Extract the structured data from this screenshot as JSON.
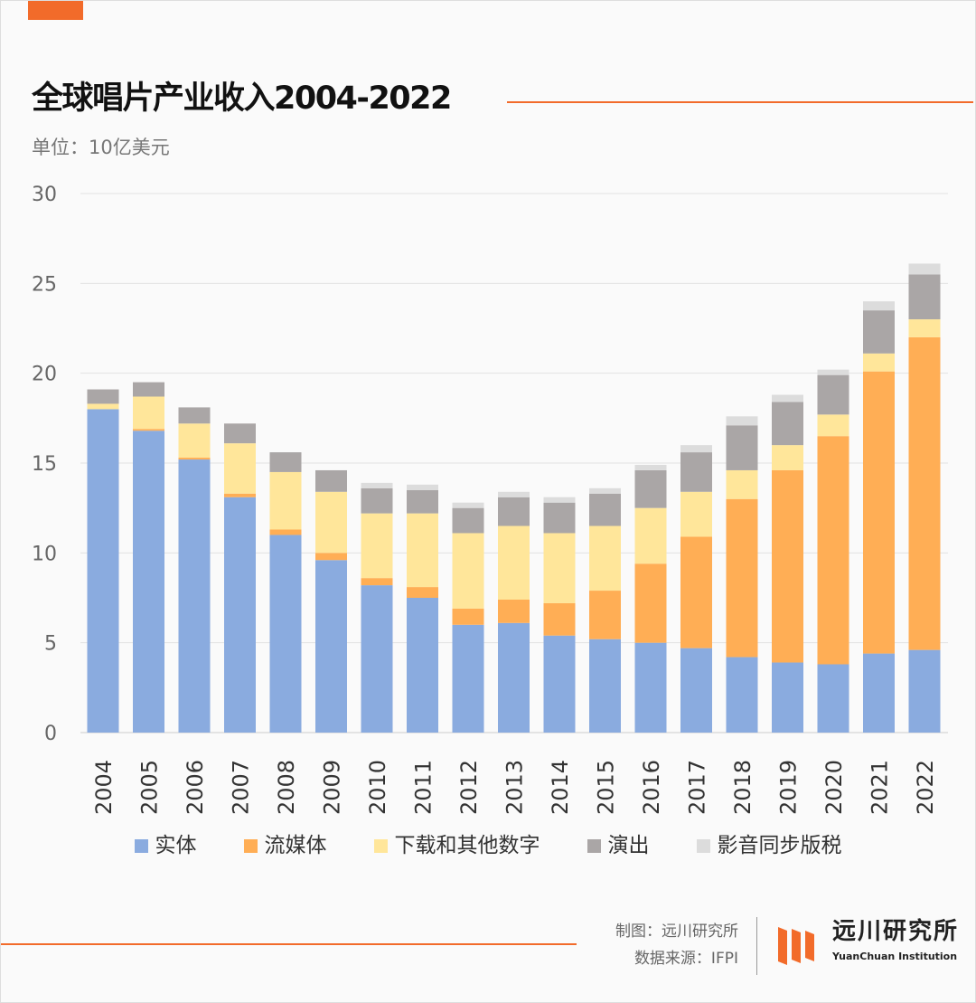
{
  "header": {
    "title": "全球唱片产业收入2004-2022",
    "subtitle": "单位：10亿美元"
  },
  "footer": {
    "made_by": "制图：远川研究所",
    "source": "数据来源：IFPI",
    "logo_text": "远川研究所",
    "logo_sub": "YuanChuan Institution"
  },
  "chart_data": {
    "type": "bar",
    "stacked": true,
    "title": "全球唱片产业收入2004-2022",
    "ylabel": "单位：10亿美元",
    "ylim": [
      0,
      30
    ],
    "yticks": [
      0,
      5,
      10,
      15,
      20,
      25,
      30
    ],
    "grid": true,
    "legend_position": "bottom",
    "categories": [
      "2004",
      "2005",
      "2006",
      "2007",
      "2008",
      "2009",
      "2010",
      "2011",
      "2012",
      "2013",
      "2014",
      "2015",
      "2016",
      "2017",
      "2018",
      "2019",
      "2020",
      "2021",
      "2022"
    ],
    "series": [
      {
        "name": "实体",
        "color": "#8aabdf",
        "values": [
          18.0,
          16.8,
          15.2,
          13.1,
          11.0,
          9.6,
          8.2,
          7.5,
          6.0,
          6.1,
          5.4,
          5.2,
          5.0,
          4.7,
          4.2,
          3.9,
          3.8,
          4.4,
          4.6
        ]
      },
      {
        "name": "流媒体",
        "color": "#ffae55",
        "values": [
          0,
          0.1,
          0.1,
          0.2,
          0.3,
          0.4,
          0.4,
          0.6,
          0.9,
          1.3,
          1.8,
          2.7,
          4.4,
          6.2,
          8.8,
          10.7,
          12.7,
          15.7,
          17.4
        ]
      },
      {
        "name": "下载和其他数字",
        "color": "#ffe69a",
        "values": [
          0.3,
          1.8,
          1.9,
          2.8,
          3.2,
          3.4,
          3.6,
          4.1,
          4.2,
          4.1,
          3.9,
          3.6,
          3.1,
          2.5,
          1.6,
          1.4,
          1.2,
          1.0,
          1.0
        ]
      },
      {
        "name": "演出",
        "color": "#aaa6a6",
        "values": [
          0.8,
          0.8,
          0.9,
          1.1,
          1.1,
          1.2,
          1.4,
          1.3,
          1.4,
          1.6,
          1.7,
          1.8,
          2.1,
          2.2,
          2.5,
          2.4,
          2.2,
          2.4,
          2.5
        ]
      },
      {
        "name": "影音同步版税",
        "color": "#dcdcdc",
        "values": [
          0,
          0,
          0,
          0,
          0,
          0,
          0.3,
          0.3,
          0.3,
          0.3,
          0.3,
          0.3,
          0.3,
          0.4,
          0.5,
          0.4,
          0.3,
          0.5,
          0.6
        ]
      }
    ]
  }
}
